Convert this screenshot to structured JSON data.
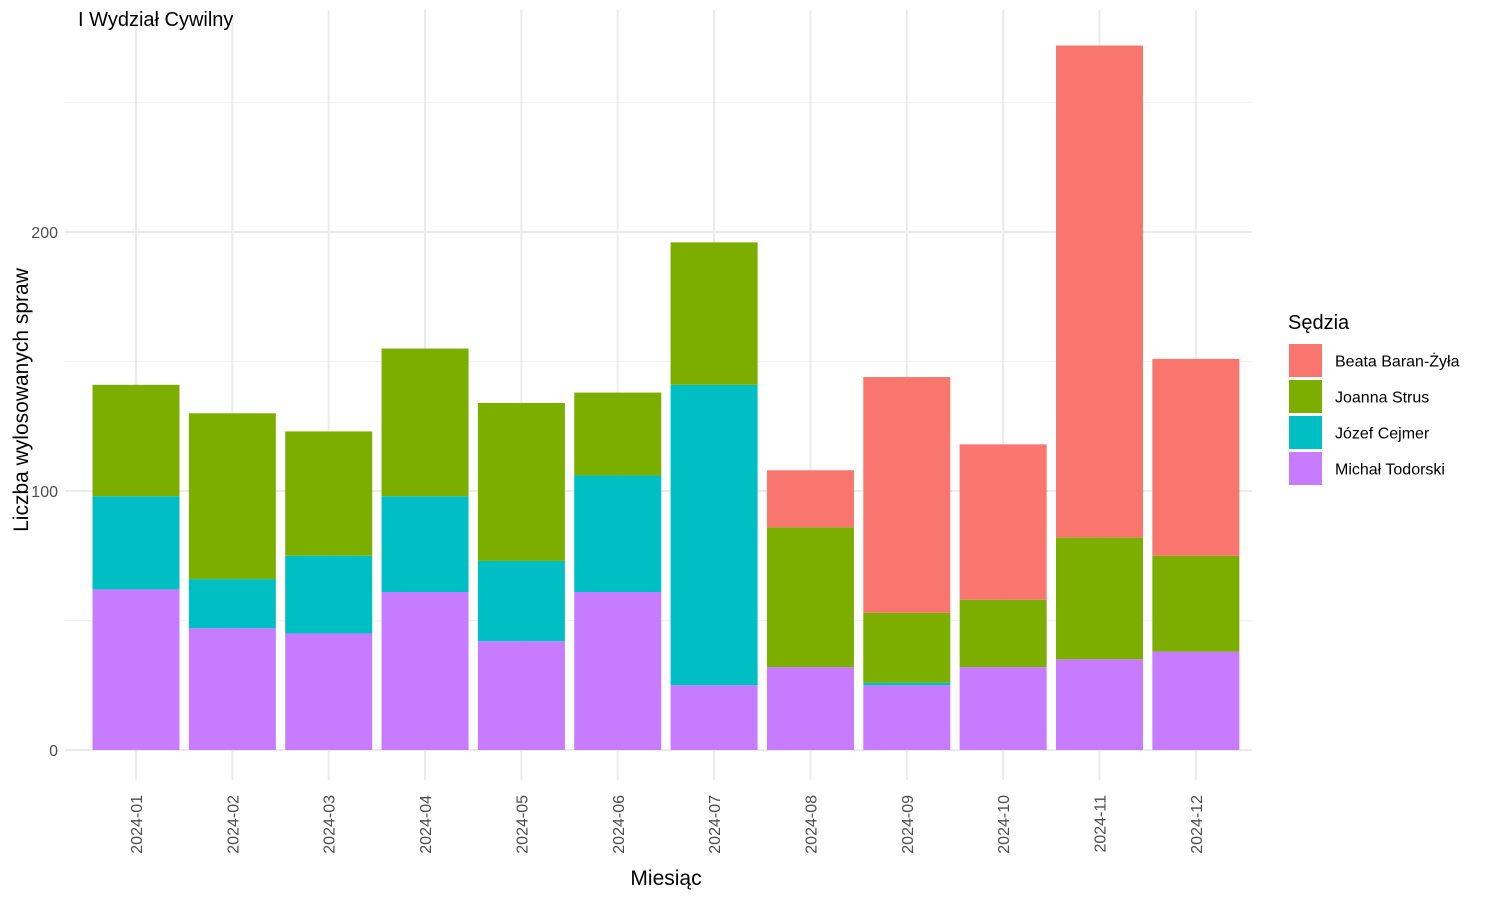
{
  "chart_data": {
    "type": "bar",
    "stacked": true,
    "title": "I Wydział Cywilny",
    "xlabel": "Miesiąc",
    "ylabel": "Liczba wylosowanych spraw",
    "ylim": [
      0,
      276
    ],
    "yticks": [
      0,
      100,
      200
    ],
    "grid": true,
    "legend": {
      "title": "Sędzia",
      "position": "right"
    },
    "categories": [
      "2024-01",
      "2024-02",
      "2024-03",
      "2024-04",
      "2024-05",
      "2024-06",
      "2024-07",
      "2024-08",
      "2024-09",
      "2024-10",
      "2024-11",
      "2024-12"
    ],
    "series": [
      {
        "name": "Michał Todorski",
        "color": "#C77CFF",
        "values": [
          62,
          47,
          45,
          61,
          42,
          61,
          25,
          32,
          25,
          32,
          35,
          38
        ]
      },
      {
        "name": "Józef Cejmer",
        "color": "#00BFC4",
        "values": [
          36,
          19,
          30,
          37,
          31,
          45,
          116,
          0,
          1,
          0,
          0,
          0
        ]
      },
      {
        "name": "Joanna Strus",
        "color": "#7CAE00",
        "values": [
          43,
          64,
          48,
          57,
          61,
          32,
          55,
          54,
          27,
          26,
          47,
          37
        ]
      },
      {
        "name": "Beata Baran-Żyła",
        "color": "#F8766D",
        "values": [
          0,
          0,
          0,
          0,
          0,
          0,
          0,
          22,
          91,
          60,
          190,
          76
        ]
      }
    ],
    "legend_order": [
      "Beata Baran-Żyła",
      "Joanna Strus",
      "Józef Cejmer",
      "Michał Todorski"
    ]
  }
}
